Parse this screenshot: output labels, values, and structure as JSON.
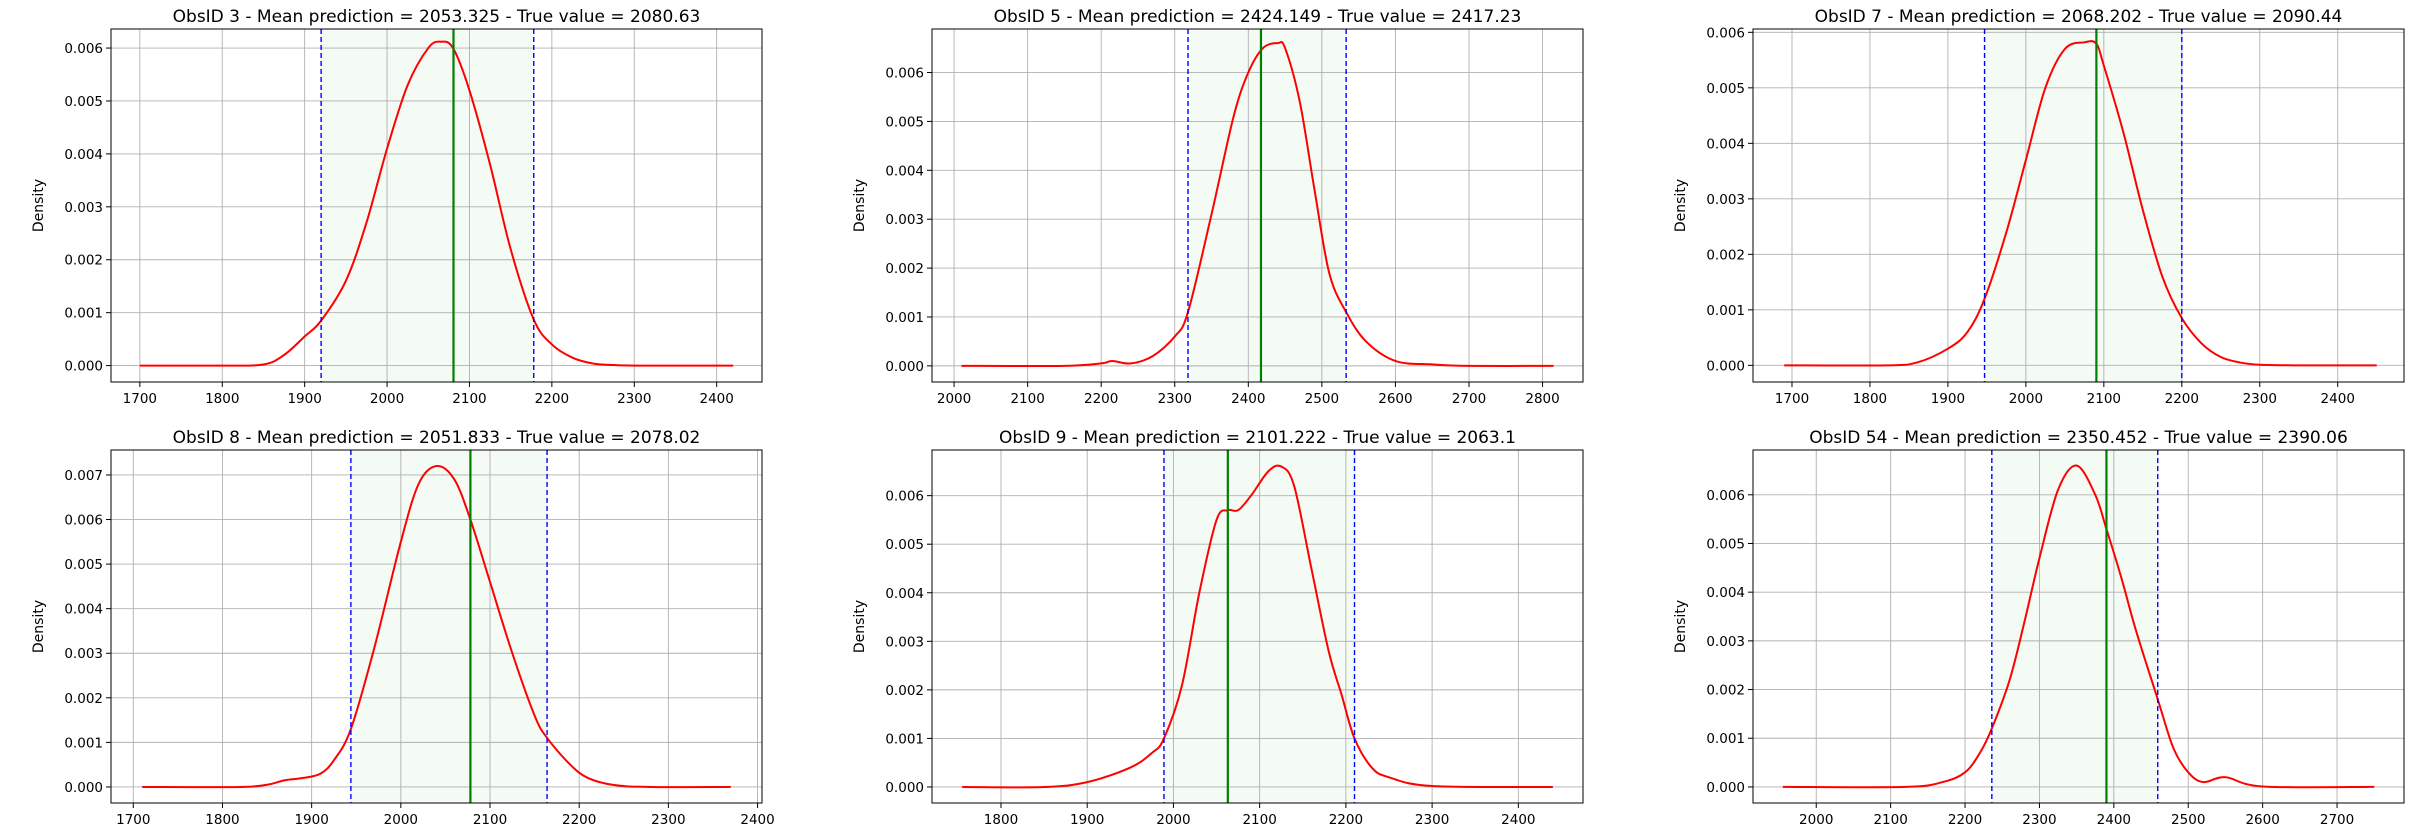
{
  "chart_data": [
    {
      "type": "line",
      "title": "ObsID 3 - Mean prediction = 2053.325 - True value = 2080.63",
      "ylabel": "Density",
      "xlim": [
        1665,
        2455
      ],
      "ylim": [
        -0.00031,
        0.00636
      ],
      "xticks": [
        1700,
        1800,
        1900,
        2000,
        2100,
        2200,
        2300,
        2400
      ],
      "yticks": [
        0.0,
        0.001,
        0.002,
        0.003,
        0.004,
        0.005,
        0.006
      ],
      "ytick_labels": [
        "0.000",
        "0.001",
        "0.002",
        "0.003",
        "0.004",
        "0.005",
        "0.006"
      ],
      "grid": true,
      "interval": [
        1920,
        2178
      ],
      "true_value": 2080.63,
      "series": [
        {
          "color": "#ff0000",
          "x": [
            1700,
            1800,
            1850,
            1875,
            1900,
            1920,
            1950,
            1975,
            2000,
            2025,
            2050,
            2065,
            2080,
            2100,
            2125,
            2150,
            2178,
            2200,
            2225,
            2250,
            2275,
            2300,
            2350,
            2420
          ],
          "y": [
            0,
            0,
            2e-05,
            0.0002,
            0.00055,
            0.00085,
            0.0016,
            0.0027,
            0.0041,
            0.0053,
            0.006,
            0.00612,
            0.006,
            0.0052,
            0.0038,
            0.0022,
            0.00087,
            0.0004,
            0.00015,
            4e-05,
            1e-05,
            0,
            0,
            0
          ]
        }
      ]
    },
    {
      "type": "line",
      "title": "ObsID 5 - Mean prediction = 2424.149 - True value = 2417.23",
      "ylabel": "Density",
      "xlim": [
        1970,
        2855
      ],
      "ylim": [
        -0.00033,
        0.00689
      ],
      "xticks": [
        2000,
        2100,
        2200,
        2300,
        2400,
        2500,
        2600,
        2700,
        2800
      ],
      "yticks": [
        0.0,
        0.001,
        0.002,
        0.003,
        0.004,
        0.005,
        0.006
      ],
      "ytick_labels": [
        "0.000",
        "0.001",
        "0.002",
        "0.003",
        "0.004",
        "0.005",
        "0.006"
      ],
      "grid": true,
      "interval": [
        2318,
        2533
      ],
      "true_value": 2417.23,
      "series": [
        {
          "color": "#ff0000",
          "x": [
            2010,
            2150,
            2200,
            2215,
            2240,
            2270,
            2300,
            2318,
            2350,
            2380,
            2400,
            2420,
            2440,
            2450,
            2470,
            2490,
            2510,
            2533,
            2560,
            2600,
            2650,
            2700,
            2815
          ],
          "y": [
            0,
            0,
            5e-05,
            0.0001,
            5e-05,
            0.0002,
            0.0006,
            0.0011,
            0.0031,
            0.0051,
            0.006,
            0.0065,
            0.0066,
            0.0065,
            0.0054,
            0.0036,
            0.0019,
            0.0011,
            0.0005,
            0.0001,
            3e-05,
            0,
            0
          ]
        }
      ]
    },
    {
      "type": "line",
      "title": "ObsID 7 - Mean prediction = 2068.202 - True value = 2090.44",
      "ylabel": "Density",
      "xlim": [
        1650,
        2485
      ],
      "ylim": [
        -0.0003,
        0.00606
      ],
      "xticks": [
        1700,
        1800,
        1900,
        2000,
        2100,
        2200,
        2300,
        2400
      ],
      "yticks": [
        0.0,
        0.001,
        0.002,
        0.003,
        0.004,
        0.005,
        0.006
      ],
      "ytick_labels": [
        "0.000",
        "0.001",
        "0.002",
        "0.003",
        "0.004",
        "0.005",
        "0.006"
      ],
      "grid": true,
      "interval": [
        1947,
        2200
      ],
      "true_value": 2090.44,
      "series": [
        {
          "color": "#ff0000",
          "x": [
            1690,
            1820,
            1860,
            1900,
            1925,
            1947,
            1975,
            2000,
            2025,
            2050,
            2075,
            2090,
            2100,
            2125,
            2150,
            2175,
            2200,
            2225,
            2250,
            2275,
            2300,
            2350,
            2450
          ],
          "y": [
            0,
            0,
            5e-05,
            0.0003,
            0.0006,
            0.0012,
            0.0024,
            0.0037,
            0.005,
            0.0057,
            0.00582,
            0.0058,
            0.0054,
            0.0042,
            0.0028,
            0.0016,
            0.00085,
            0.0004,
            0.00015,
            5e-05,
            1e-05,
            0,
            0
          ]
        }
      ]
    },
    {
      "type": "line",
      "title": "ObsID 8 - Mean prediction = 2051.833 - True value = 2078.02",
      "ylabel": "Density",
      "xlim": [
        1675,
        2405
      ],
      "ylim": [
        -0.00036,
        0.00756
      ],
      "xticks": [
        1700,
        1800,
        1900,
        2000,
        2100,
        2200,
        2300,
        2400
      ],
      "yticks": [
        0.0,
        0.001,
        0.002,
        0.003,
        0.004,
        0.005,
        0.006,
        0.007
      ],
      "ytick_labels": [
        "0.000",
        "0.001",
        "0.002",
        "0.003",
        "0.004",
        "0.005",
        "0.006",
        "0.007"
      ],
      "grid": true,
      "interval": [
        1944,
        2164
      ],
      "true_value": 2078.02,
      "series": [
        {
          "color": "#ff0000",
          "x": [
            1710,
            1820,
            1850,
            1870,
            1890,
            1910,
            1925,
            1944,
            1970,
            2000,
            2020,
            2040,
            2060,
            2078,
            2100,
            2125,
            2150,
            2164,
            2190,
            2210,
            2240,
            2280,
            2370
          ],
          "y": [
            0,
            0,
            5e-05,
            0.00015,
            0.0002,
            0.0003,
            0.0006,
            0.0013,
            0.0031,
            0.0055,
            0.0068,
            0.0072,
            0.0069,
            0.006,
            0.0046,
            0.003,
            0.0016,
            0.0011,
            0.0005,
            0.0002,
            4e-05,
            0,
            0
          ]
        }
      ]
    },
    {
      "type": "line",
      "title": "ObsID 9 - Mean prediction = 2101.222 - True value = 2063.1",
      "ylabel": "Density",
      "xlim": [
        1720,
        2475
      ],
      "ylim": [
        -0.00033,
        0.00694
      ],
      "xticks": [
        1800,
        1900,
        2000,
        2100,
        2200,
        2300,
        2400
      ],
      "yticks": [
        0.0,
        0.001,
        0.002,
        0.003,
        0.004,
        0.005,
        0.006
      ],
      "ytick_labels": [
        "0.000",
        "0.001",
        "0.002",
        "0.003",
        "0.004",
        "0.005",
        "0.006"
      ],
      "grid": true,
      "interval": [
        1989,
        2210
      ],
      "true_value": 2063.1,
      "series": [
        {
          "color": "#ff0000",
          "x": [
            1755,
            1850,
            1900,
            1950,
            1975,
            1989,
            2010,
            2030,
            2050,
            2063,
            2075,
            2090,
            2110,
            2125,
            2140,
            2160,
            2180,
            2195,
            2210,
            2230,
            2250,
            2300,
            2440
          ],
          "y": [
            0,
            0,
            0.0001,
            0.0004,
            0.0007,
            0.001,
            0.0021,
            0.004,
            0.0055,
            0.0057,
            0.0057,
            0.006,
            0.0065,
            0.0066,
            0.0062,
            0.0045,
            0.0028,
            0.0019,
            0.001,
            0.0004,
            0.0002,
            2e-05,
            0
          ]
        }
      ]
    },
    {
      "type": "line",
      "title": "ObsID 54 - Mean prediction = 2350.452 - True value = 2390.06",
      "ylabel": "Density",
      "xlim": [
        1915,
        2790
      ],
      "ylim": [
        -0.00033,
        0.00692
      ],
      "xticks": [
        2000,
        2100,
        2200,
        2300,
        2400,
        2500,
        2600,
        2700
      ],
      "yticks": [
        0.0,
        0.001,
        0.002,
        0.003,
        0.004,
        0.005,
        0.006
      ],
      "ytick_labels": [
        "0.000",
        "0.001",
        "0.002",
        "0.003",
        "0.004",
        "0.005",
        "0.006"
      ],
      "grid": true,
      "interval": [
        2236,
        2459
      ],
      "true_value": 2390.06,
      "series": [
        {
          "color": "#ff0000",
          "x": [
            1955,
            2120,
            2170,
            2200,
            2220,
            2236,
            2260,
            2280,
            2300,
            2325,
            2350,
            2375,
            2390,
            2410,
            2430,
            2459,
            2480,
            2500,
            2520,
            2550,
            2600,
            2750
          ],
          "y": [
            0,
            0,
            0.0001,
            0.0003,
            0.0007,
            0.0012,
            0.0022,
            0.0034,
            0.0047,
            0.0061,
            0.0066,
            0.006,
            0.0053,
            0.0043,
            0.0032,
            0.0018,
            0.0008,
            0.0003,
            0.0001,
            0.0002,
            1e-05,
            0
          ]
        }
      ]
    }
  ]
}
